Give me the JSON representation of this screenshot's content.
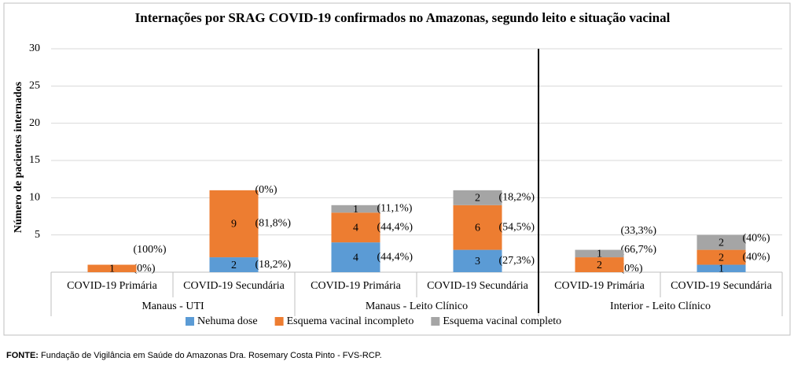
{
  "chart_data": {
    "type": "bar",
    "stacked": true,
    "title": "Internações por SRAG COVID-19 confirmados no Amazonas, segundo leito e situação vacinal",
    "ylabel": "Número de pacientes internados",
    "categories": [
      "COVID-19 Primária",
      "COVID-19 Secundária",
      "COVID-19 Primária",
      "COVID-19 Secundária",
      "COVID-19 Primária",
      "COVID-19 Secundária"
    ],
    "groups": [
      "Manaus - UTI",
      "Manaus - Leito Clínico",
      "Interior - Leito Clínico"
    ],
    "series": [
      {
        "name": "Nehuma dose",
        "color": "#5b9bd5",
        "values": [
          0,
          2,
          4,
          3,
          0,
          1
        ],
        "pct_labels": [
          "(0%)",
          "(18,2%)",
          "(44,4%)",
          "(27,3%)",
          "(0%)",
          null
        ]
      },
      {
        "name": "Esquema vacinal incompleto",
        "color": "#ed7d31",
        "values": [
          1,
          9,
          4,
          6,
          2,
          2
        ],
        "pct_labels": [
          "(100%)",
          "(81,8%)",
          "(44,4%)",
          "(54,5%)",
          "(66,7%)",
          "(40%)"
        ]
      },
      {
        "name": "Esquema vacinal completo",
        "color": "#a5a5a5",
        "values": [
          0,
          0,
          1,
          2,
          1,
          2
        ],
        "pct_labels": [
          null,
          "(0%)",
          "(11,1%)",
          "(18,2%)",
          "(33,3%)",
          "(40%)"
        ]
      }
    ],
    "ylim": [
      0,
      30
    ],
    "yticks": [
      5,
      10,
      15,
      20,
      25,
      30
    ],
    "grid": true,
    "legend": "bottom"
  },
  "footer": {
    "label": "FONTE:",
    "text": "Fundação de Vigilância em Saúde do Amazonas Dra. Rosemary Costa Pinto - FVS-RCP."
  }
}
